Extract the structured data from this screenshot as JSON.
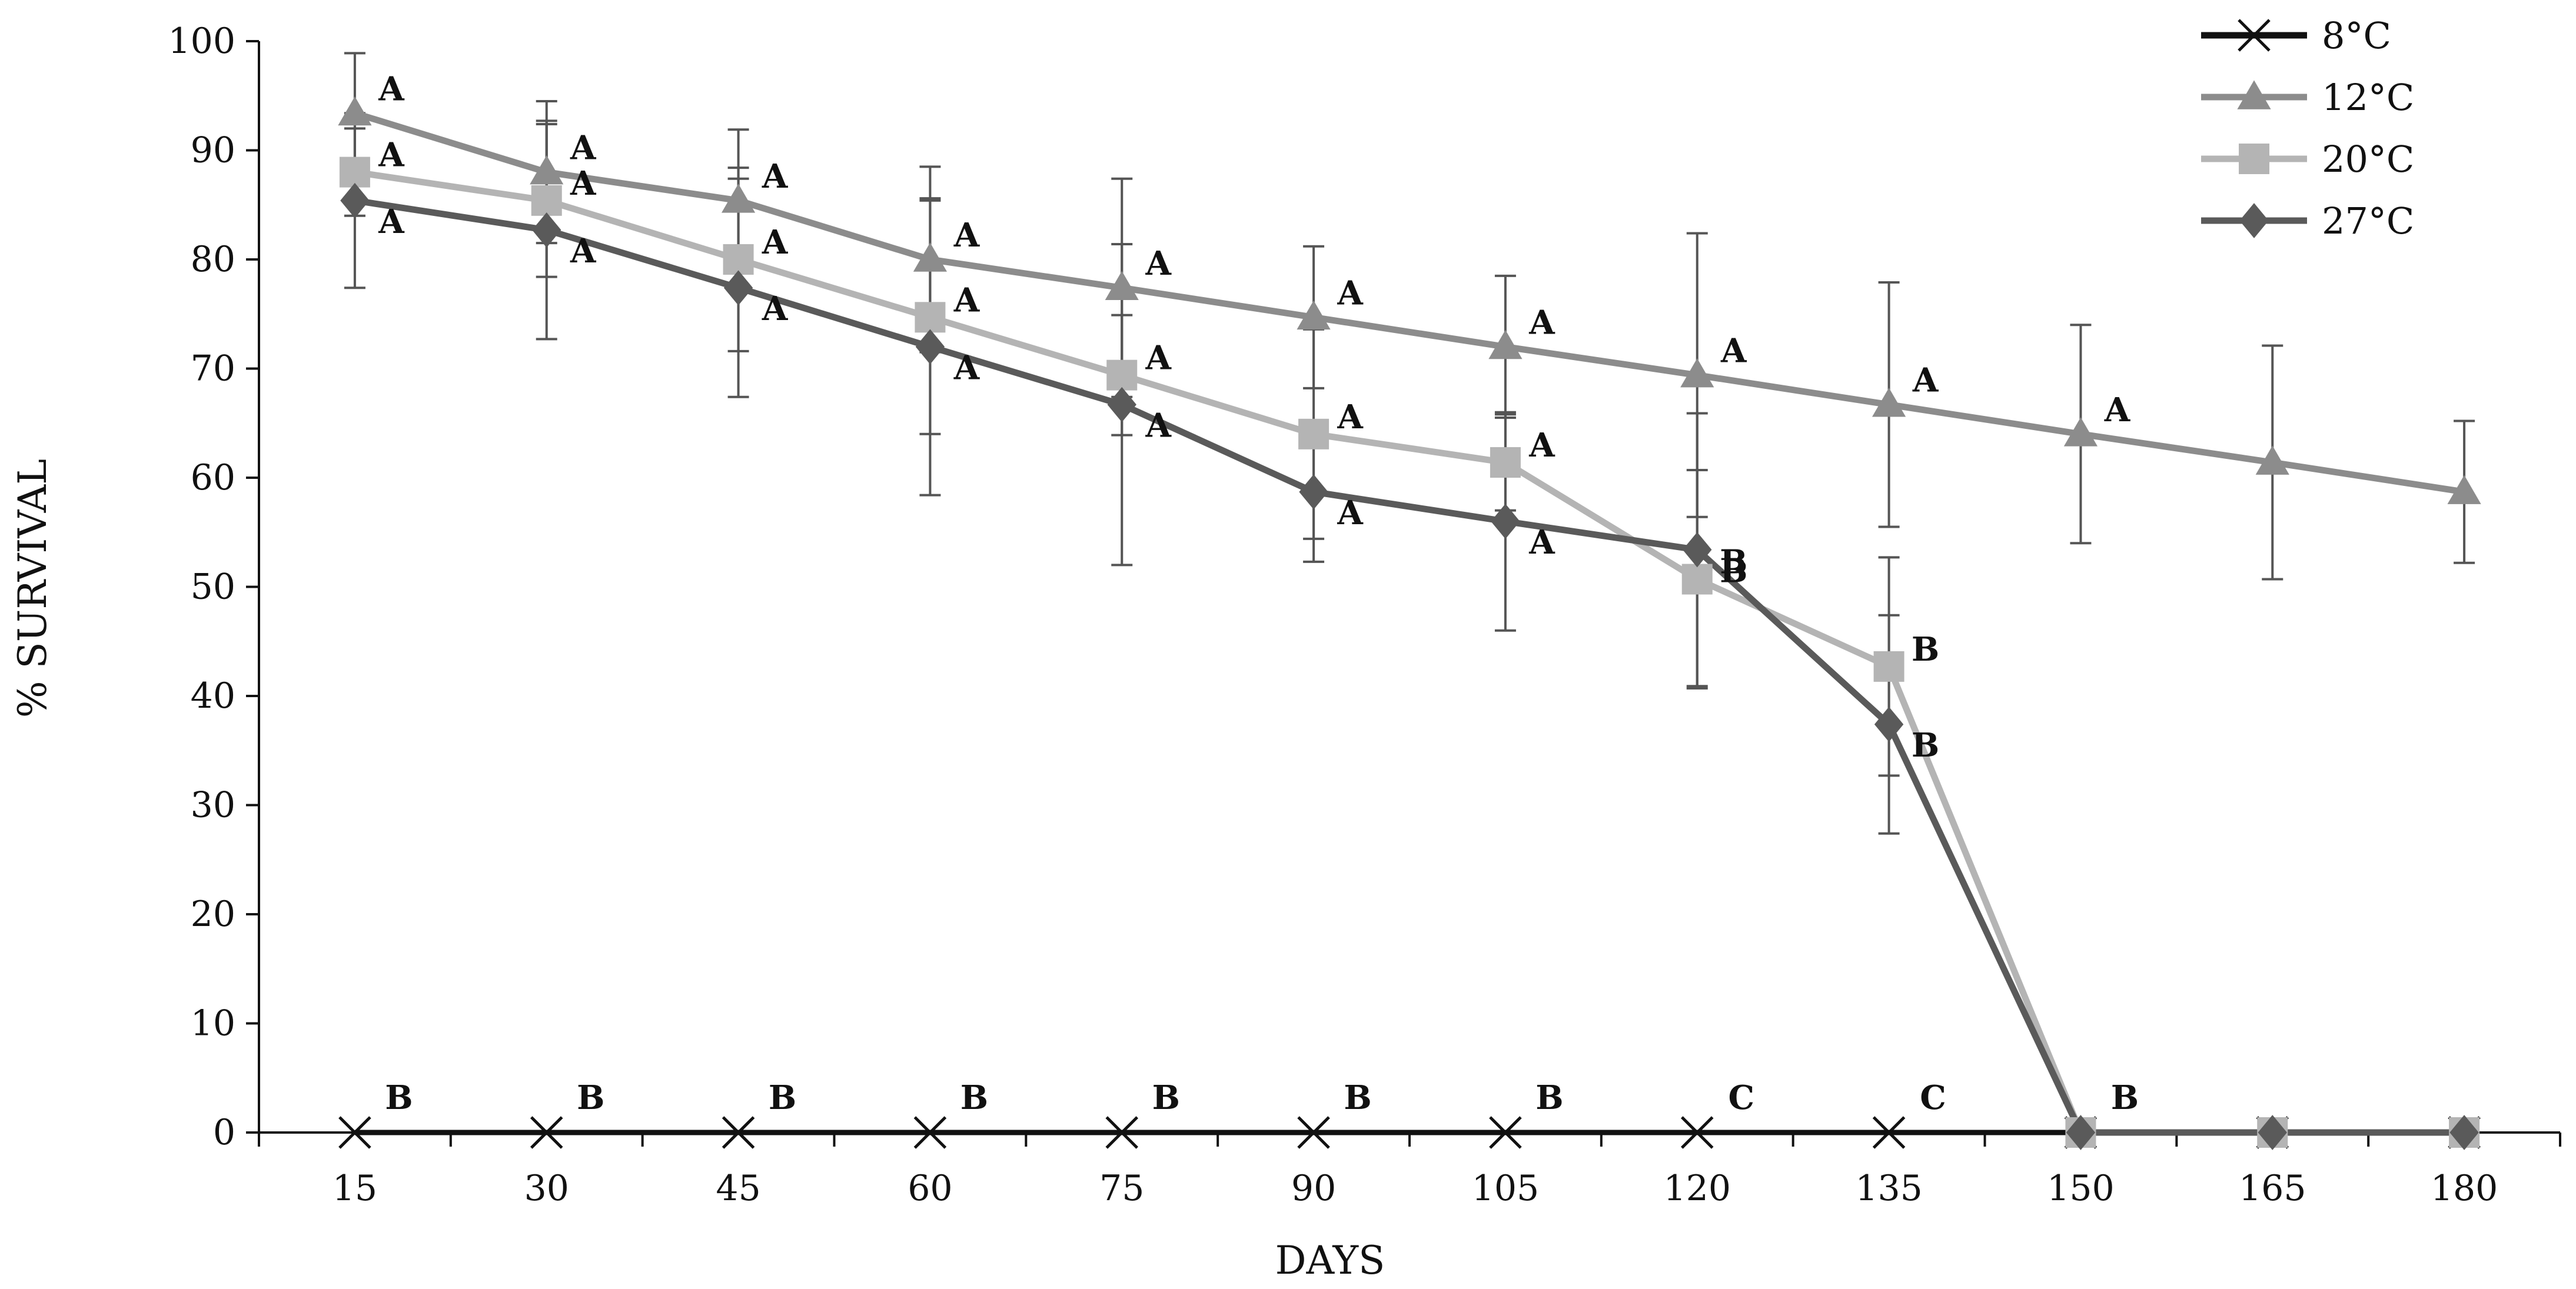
{
  "chart_data": {
    "type": "line",
    "title": "",
    "xlabel": "DAYS",
    "ylabel": "% SURVIVAL",
    "x": [
      15,
      30,
      45,
      60,
      75,
      90,
      105,
      120,
      135,
      150,
      165,
      180
    ],
    "x_tick_labels": [
      "15",
      "30",
      "45",
      "60",
      "75",
      "90",
      "105",
      "120",
      "135",
      "150",
      "165",
      "180"
    ],
    "ylim": [
      0,
      100
    ],
    "y_ticks": [
      0,
      10,
      20,
      30,
      40,
      50,
      60,
      70,
      80,
      90,
      100
    ],
    "legend_position": "top-right",
    "series": [
      {
        "name": "8°C",
        "color": "#111111",
        "marker": "x",
        "values": [
          0,
          0,
          0,
          0,
          0,
          0,
          0,
          0,
          0,
          0,
          0,
          0
        ],
        "letters": [
          "B",
          "B",
          "B",
          "B",
          "B",
          "B",
          "B",
          "C",
          "C",
          "B",
          "",
          ""
        ]
      },
      {
        "name": "12°C",
        "color": "#8c8c8c",
        "marker": "triangle",
        "values": [
          93.4,
          88,
          85.4,
          80,
          77.4,
          74.7,
          72,
          69.4,
          66.7,
          64,
          61.4,
          58.7
        ],
        "error": [
          5.5,
          6.5,
          6.5,
          8.5,
          10,
          6.5,
          6.5,
          13,
          11.2,
          10,
          10.7,
          6.5
        ],
        "letters": [
          "A",
          "A",
          "A",
          "A",
          "A",
          "A",
          "A",
          "A",
          "A",
          "A",
          "",
          ""
        ]
      },
      {
        "name": "20°C",
        "color": "#b4b4b4",
        "marker": "square",
        "values": [
          88,
          85.4,
          80,
          74.7,
          69.4,
          64,
          61.4,
          50.7,
          42.7,
          0,
          0,
          0
        ],
        "error": [
          4,
          7,
          8.4,
          10.7,
          5.5,
          9.6,
          4.4,
          10,
          10,
          0,
          0,
          0
        ],
        "letters": [
          "A",
          "A",
          "A",
          "A",
          "A",
          "A",
          "A",
          "B",
          "B",
          "",
          "",
          ""
        ]
      },
      {
        "name": "27°C",
        "color": "#5a5a5a",
        "marker": "diamond",
        "values": [
          85.4,
          82.7,
          77.4,
          72,
          66.7,
          58.7,
          56,
          53.4,
          37.4,
          0,
          0,
          0
        ],
        "error": [
          8,
          10,
          10,
          13.6,
          14.7,
          6.4,
          10,
          12.5,
          10,
          0,
          0,
          0
        ],
        "letters": [
          "A",
          "A",
          "A",
          "A",
          "A",
          "A",
          "A",
          "B",
          "B",
          "",
          "",
          ""
        ]
      }
    ]
  }
}
